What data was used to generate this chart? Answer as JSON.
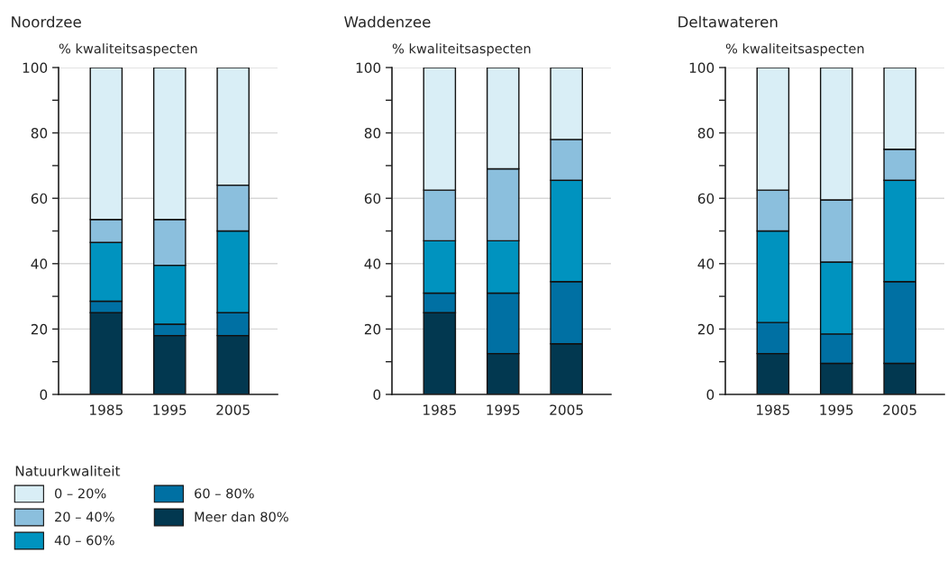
{
  "chart_data": [
    {
      "type": "bar",
      "stacked": true,
      "title": "Noordzee",
      "ylabel": "% kwaliteitsaspecten",
      "categories": [
        "1985",
        "1995",
        "2005"
      ],
      "ylim": [
        0,
        100
      ],
      "yticks": [
        0,
        {
          "value": 10,
          "label": null
        },
        20,
        {
          "value": 30,
          "label": null
        },
        40,
        {
          "value": 50,
          "label": null
        },
        60,
        {
          "value": 70,
          "label": null
        },
        80,
        {
          "value": 90,
          "label": null
        },
        100
      ],
      "grid": "y",
      "legend": "bottom left",
      "legend_title": "Natuurkwaliteit",
      "series": [
        {
          "name": "Meer dan 80%",
          "color": "#023850",
          "values": [
            25,
            18,
            18
          ]
        },
        {
          "name": "60 – 80%",
          "color": "#0070a3",
          "values": [
            3.5,
            3.5,
            7
          ]
        },
        {
          "name": "40 – 60%",
          "color": "#0093bf",
          "values": [
            18,
            18,
            25
          ]
        },
        {
          "name": "20 – 40%",
          "color": "#8bbfdd",
          "values": [
            7,
            14,
            14
          ]
        },
        {
          "name": "0 – 20%",
          "color": "#d9eef6",
          "values": [
            46.5,
            46.5,
            36
          ]
        }
      ]
    },
    {
      "type": "bar",
      "stacked": true,
      "title": "Waddenzee",
      "ylabel": "% kwaliteitsaspecten",
      "categories": [
        "1985",
        "1995",
        "2005"
      ],
      "ylim": [
        0,
        100
      ],
      "yticks": [
        0,
        {
          "value": 10,
          "label": null
        },
        20,
        {
          "value": 30,
          "label": null
        },
        40,
        {
          "value": 50,
          "label": null
        },
        60,
        {
          "value": 70,
          "label": null
        },
        80,
        {
          "value": 90,
          "label": null
        },
        100
      ],
      "grid": "y",
      "series": [
        {
          "color": "#023850",
          "values": [
            25,
            12.5,
            15.5
          ]
        },
        {
          "color": "#0070a3",
          "values": [
            6,
            18.5,
            19
          ]
        },
        {
          "color": "#0093bf",
          "values": [
            16,
            16,
            31
          ]
        },
        {
          "color": "#8bbfdd",
          "values": [
            15.5,
            22,
            12.5
          ]
        },
        {
          "color": "#d9eef6",
          "values": [
            37.5,
            31,
            22
          ]
        }
      ]
    },
    {
      "type": "bar",
      "stacked": true,
      "title": "Deltawateren",
      "ylabel": "% kwaliteitsaspecten",
      "categories": [
        "1985",
        "1995",
        "2005"
      ],
      "ylim": [
        0,
        100
      ],
      "yticks": [
        0,
        {
          "value": 10,
          "label": null
        },
        20,
        {
          "value": 30,
          "label": null
        },
        40,
        {
          "value": 50,
          "label": null
        },
        60,
        {
          "value": 70,
          "label": null
        },
        80,
        {
          "value": 90,
          "label": null
        },
        100
      ],
      "grid": "y",
      "series": [
        {
          "color": "#023850",
          "values": [
            12.5,
            9.5,
            9.5
          ]
        },
        {
          "color": "#0070a3",
          "values": [
            9.5,
            9,
            25
          ]
        },
        {
          "color": "#0093bf",
          "values": [
            28,
            22,
            31
          ]
        },
        {
          "color": "#8bbfdd",
          "values": [
            12.5,
            19,
            9.5
          ]
        },
        {
          "color": "#d9eef6",
          "values": [
            37.5,
            40.5,
            25
          ]
        }
      ]
    }
  ]
}
